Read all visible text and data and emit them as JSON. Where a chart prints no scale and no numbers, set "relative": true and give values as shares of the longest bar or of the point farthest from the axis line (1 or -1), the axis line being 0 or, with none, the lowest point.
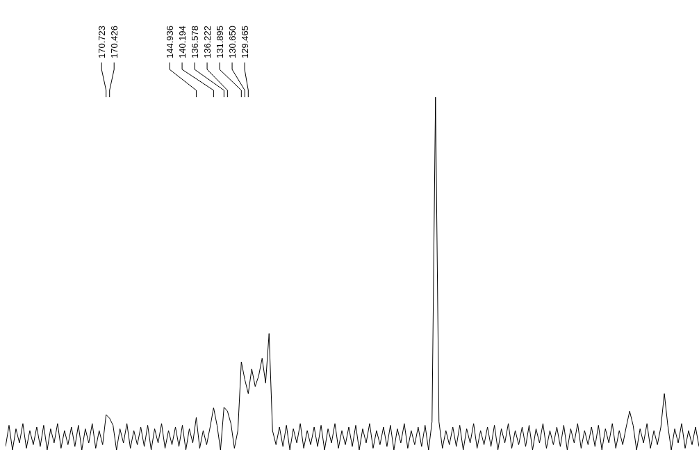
{
  "chart_data": {
    "type": "line",
    "relative": true,
    "tick_labels": false,
    "marker": "none",
    "line_style": "solid",
    "categories": [
      null,
      null,
      null,
      null,
      null,
      null,
      null,
      null,
      null,
      null,
      null,
      null,
      null,
      null,
      null,
      null,
      null,
      null,
      null,
      null,
      null,
      null,
      null,
      null,
      null,
      null,
      null,
      null,
      null,
      null,
      null,
      null,
      null,
      null,
      null,
      null,
      null,
      null,
      null,
      null,
      null,
      null,
      null,
      null,
      null,
      null,
      null,
      null,
      null,
      null,
      null,
      null,
      null,
      null,
      null,
      null,
      null,
      null,
      null,
      null,
      null,
      null,
      null,
      null,
      null,
      null,
      null,
      null,
      null,
      null,
      null,
      null,
      null,
      null,
      null,
      null,
      null,
      null,
      null,
      null,
      null,
      null,
      null,
      null,
      null,
      null,
      null,
      null,
      null,
      null,
      null,
      null,
      null,
      null,
      null,
      null,
      null,
      null,
      null,
      null,
      null,
      null,
      null,
      null,
      null,
      null,
      null,
      null,
      null,
      null,
      null,
      null,
      null,
      null,
      null,
      null,
      null,
      null,
      null,
      null,
      null,
      null,
      null,
      null,
      null,
      null,
      null,
      null,
      null,
      null,
      null,
      null,
      null,
      null,
      null,
      null,
      null,
      null,
      null,
      null,
      null,
      null,
      null,
      null,
      null,
      null,
      null,
      null,
      null,
      null,
      null,
      null,
      null,
      null,
      null,
      null,
      null,
      null,
      null,
      null,
      null,
      null,
      null,
      null,
      null,
      null,
      null,
      null,
      null,
      null,
      null,
      null,
      null,
      null,
      null,
      null,
      null,
      null,
      null,
      null,
      null,
      null,
      null,
      null,
      null,
      null,
      null,
      null,
      null,
      null,
      null,
      null,
      null,
      null,
      null,
      null,
      null,
      null,
      null,
      null,
      null
    ],
    "series": [
      {
        "color": "#000000",
        "values": [
          0.01,
          0.07,
          0,
          0.06,
          0.02,
          0.075,
          0.005,
          0.055,
          0.015,
          0.065,
          0.01,
          0.07,
          0,
          0.06,
          0.02,
          0.075,
          0.005,
          0.055,
          0.015,
          0.065,
          0.01,
          0.07,
          0,
          0.06,
          0.02,
          0.075,
          0.005,
          0.055,
          0.015,
          0.1,
          0.09,
          0.07,
          0,
          0.06,
          0.02,
          0.075,
          0.005,
          0.055,
          0.015,
          0.065,
          0.01,
          0.07,
          0,
          0.06,
          0.02,
          0.075,
          0.005,
          0.055,
          0.015,
          0.065,
          0.01,
          0.07,
          0,
          0.06,
          0.02,
          0.092,
          0.005,
          0.055,
          0.015,
          0.065,
          0.12,
          0.07,
          0,
          0.121,
          0.11,
          0.075,
          0.005,
          0.055,
          0.25,
          0.2,
          0.16,
          0.23,
          0.18,
          0.21,
          0.26,
          0.19,
          0.33,
          0.055,
          0.015,
          0.065,
          0.01,
          0.07,
          0,
          0.06,
          0.02,
          0.075,
          0.005,
          0.055,
          0.015,
          0.065,
          0.01,
          0.07,
          0,
          0.06,
          0.02,
          0.075,
          0.005,
          0.055,
          0.015,
          0.065,
          0.01,
          0.07,
          0,
          0.06,
          0.02,
          0.075,
          0.005,
          0.055,
          0.015,
          0.065,
          0.01,
          0.07,
          0,
          0.06,
          0.02,
          0.075,
          0.005,
          0.055,
          0.015,
          0.065,
          0.01,
          0.07,
          0,
          0.08,
          1.0,
          0.08,
          0.005,
          0.055,
          0.015,
          0.065,
          0.01,
          0.07,
          0,
          0.06,
          0.02,
          0.075,
          0.005,
          0.055,
          0.015,
          0.065,
          0.01,
          0.07,
          0,
          0.06,
          0.02,
          0.075,
          0.005,
          0.055,
          0.015,
          0.065,
          0.01,
          0.07,
          0,
          0.06,
          0.02,
          0.075,
          0.005,
          0.055,
          0.015,
          0.065,
          0.01,
          0.07,
          0,
          0.06,
          0.02,
          0.075,
          0.005,
          0.055,
          0.015,
          0.065,
          0.01,
          0.07,
          0,
          0.06,
          0.02,
          0.075,
          0.005,
          0.055,
          0.015,
          0.065,
          0.11,
          0.07,
          0,
          0.06,
          0.02,
          0.075,
          0.005,
          0.055,
          0.015,
          0.065,
          0.16,
          0.07,
          0,
          0.06,
          0.02,
          0.075,
          0.005,
          0.055,
          0.015,
          0.065,
          0.01
        ]
      }
    ],
    "annotations": [
      "170.723",
      "170.426",
      "144.936",
      "140.194",
      "136.578",
      "136.222",
      "131.895",
      "130.650",
      "129.465"
    ]
  }
}
